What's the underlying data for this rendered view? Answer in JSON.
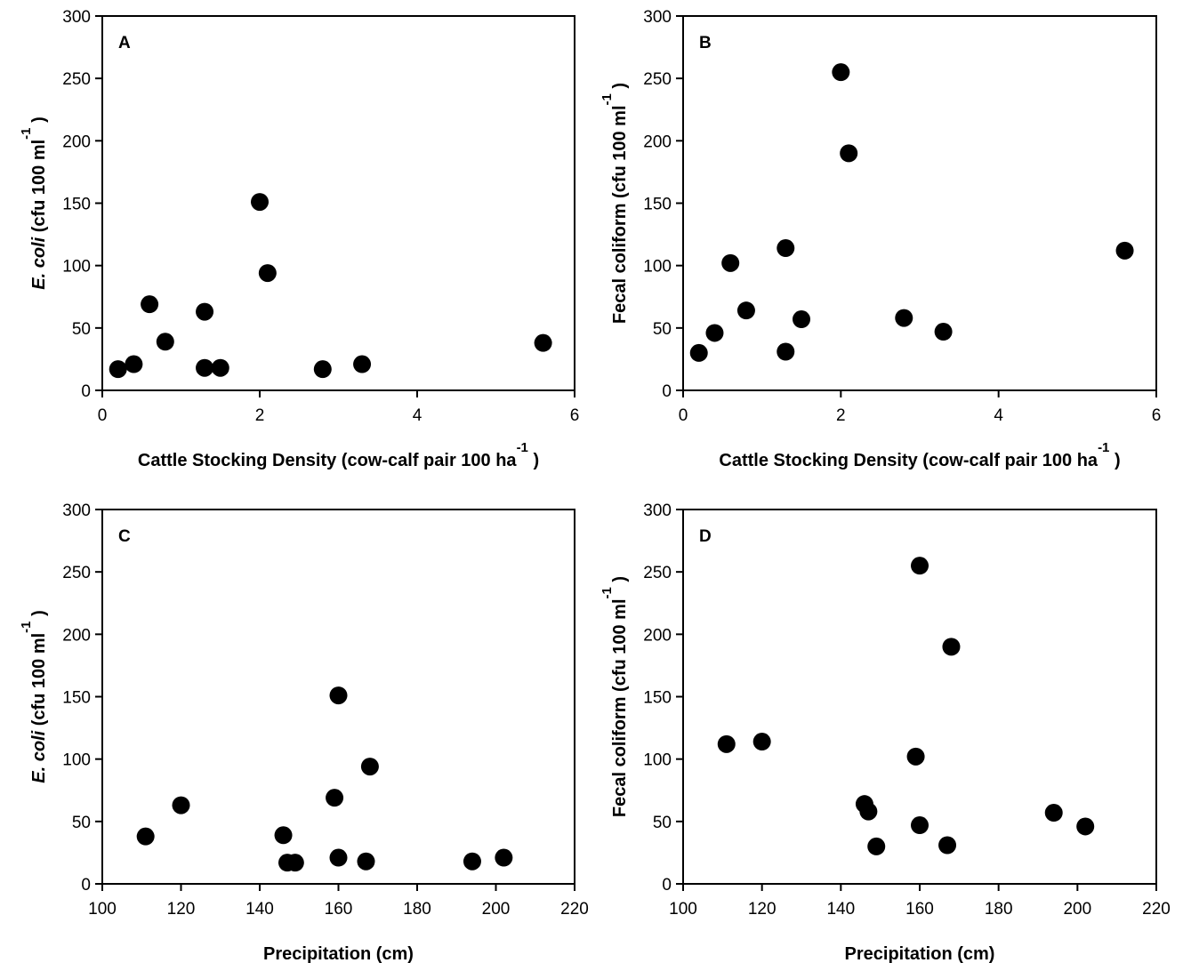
{
  "chart_data": [
    {
      "type": "scatter",
      "panel_label": "A",
      "ylabel": {
        "italic": "E. coli",
        "rest": "(cfu 100 ml",
        "sup": "-1",
        "close": ")"
      },
      "xlabel": {
        "text": "Cattle Stocking Density (cow-calf pair 100 ha",
        "sup": "-1",
        "close": ")"
      },
      "xlim": [
        0,
        6
      ],
      "xticks": [
        0,
        2,
        4,
        6
      ],
      "ylim": [
        0,
        300
      ],
      "yticks": [
        0,
        50,
        100,
        150,
        200,
        250,
        300
      ],
      "points": [
        {
          "x": 0.2,
          "y": 17
        },
        {
          "x": 0.4,
          "y": 21
        },
        {
          "x": 0.6,
          "y": 69
        },
        {
          "x": 0.8,
          "y": 39
        },
        {
          "x": 1.3,
          "y": 63
        },
        {
          "x": 1.3,
          "y": 18
        },
        {
          "x": 1.5,
          "y": 18
        },
        {
          "x": 2.0,
          "y": 151
        },
        {
          "x": 2.1,
          "y": 94
        },
        {
          "x": 2.8,
          "y": 17
        },
        {
          "x": 3.3,
          "y": 21
        },
        {
          "x": 5.6,
          "y": 38
        }
      ]
    },
    {
      "type": "scatter",
      "panel_label": "B",
      "ylabel": {
        "italic": "",
        "rest": "Fecal coliform (cfu 100 ml",
        "sup": "-1",
        "close": ")"
      },
      "xlabel": {
        "text": "Cattle Stocking Density (cow-calf pair 100 ha",
        "sup": "-1",
        "close": ")"
      },
      "xlim": [
        0,
        6
      ],
      "xticks": [
        0,
        2,
        4,
        6
      ],
      "ylim": [
        0,
        300
      ],
      "yticks": [
        0,
        50,
        100,
        150,
        200,
        250,
        300
      ],
      "points": [
        {
          "x": 0.2,
          "y": 30
        },
        {
          "x": 0.4,
          "y": 46
        },
        {
          "x": 0.6,
          "y": 102
        },
        {
          "x": 0.8,
          "y": 64
        },
        {
          "x": 1.3,
          "y": 114
        },
        {
          "x": 1.3,
          "y": 31
        },
        {
          "x": 1.5,
          "y": 57
        },
        {
          "x": 2.0,
          "y": 255
        },
        {
          "x": 2.1,
          "y": 190
        },
        {
          "x": 2.8,
          "y": 58
        },
        {
          "x": 3.3,
          "y": 47
        },
        {
          "x": 5.6,
          "y": 112
        }
      ]
    },
    {
      "type": "scatter",
      "panel_label": "C",
      "ylabel": {
        "italic": "E. coli",
        "rest": "(cfu 100 ml",
        "sup": "-1",
        "close": ")"
      },
      "xlabel": {
        "text": "Precipitation (cm)",
        "sup": "",
        "close": ""
      },
      "xlim": [
        100,
        220
      ],
      "xticks": [
        100,
        120,
        140,
        160,
        180,
        200,
        220
      ],
      "ylim": [
        0,
        300
      ],
      "yticks": [
        0,
        50,
        100,
        150,
        200,
        250,
        300
      ],
      "points": [
        {
          "x": 111,
          "y": 38
        },
        {
          "x": 120,
          "y": 63
        },
        {
          "x": 146,
          "y": 39
        },
        {
          "x": 147,
          "y": 17
        },
        {
          "x": 149,
          "y": 17
        },
        {
          "x": 159,
          "y": 69
        },
        {
          "x": 160,
          "y": 151
        },
        {
          "x": 160,
          "y": 21
        },
        {
          "x": 167,
          "y": 18
        },
        {
          "x": 168,
          "y": 94
        },
        {
          "x": 194,
          "y": 18
        },
        {
          "x": 202,
          "y": 21
        }
      ]
    },
    {
      "type": "scatter",
      "panel_label": "D",
      "ylabel": {
        "italic": "",
        "rest": "Fecal coliform (cfu 100 ml",
        "sup": "-1",
        "close": ")"
      },
      "xlabel": {
        "text": "Precipitation (cm)",
        "sup": "",
        "close": ""
      },
      "xlim": [
        100,
        220
      ],
      "xticks": [
        100,
        120,
        140,
        160,
        180,
        200,
        220
      ],
      "ylim": [
        0,
        300
      ],
      "yticks": [
        0,
        50,
        100,
        150,
        200,
        250,
        300
      ],
      "points": [
        {
          "x": 111,
          "y": 112
        },
        {
          "x": 120,
          "y": 114
        },
        {
          "x": 146,
          "y": 64
        },
        {
          "x": 147,
          "y": 58
        },
        {
          "x": 149,
          "y": 30
        },
        {
          "x": 159,
          "y": 102
        },
        {
          "x": 160,
          "y": 255
        },
        {
          "x": 160,
          "y": 47
        },
        {
          "x": 167,
          "y": 31
        },
        {
          "x": 168,
          "y": 190
        },
        {
          "x": 194,
          "y": 57
        },
        {
          "x": 202,
          "y": 46
        }
      ]
    }
  ]
}
